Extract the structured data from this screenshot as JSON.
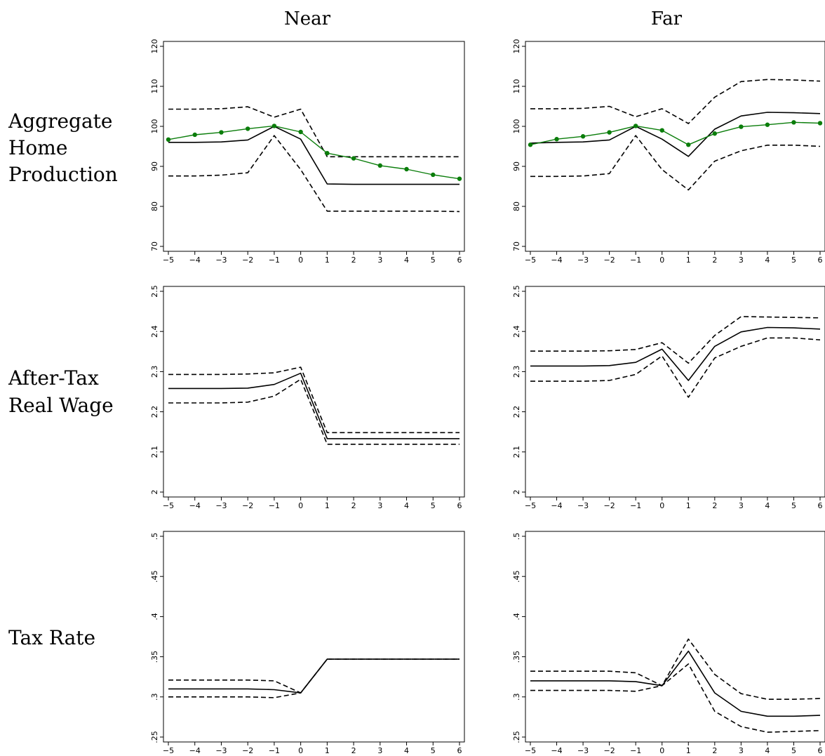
{
  "column_titles": [
    "Near",
    "Far"
  ],
  "row_labels": [
    [
      "Aggregate",
      "Home",
      "Production"
    ],
    [
      "After-Tax",
      "Real Wage"
    ],
    [
      "Tax Rate"
    ]
  ],
  "colors": {
    "estimate": "#000000",
    "bands": "#000000",
    "comparison": "#0a7d0a"
  },
  "chart_data": [
    {
      "type": "line",
      "row": 0,
      "col": 0,
      "x": [
        -5,
        -4,
        -3,
        -2,
        -1,
        0,
        1,
        2,
        3,
        4,
        5,
        6
      ],
      "ylim": [
        70,
        120
      ],
      "xticks": [
        "-5",
        "-4",
        "-3",
        "-2",
        "-1",
        "0",
        "1",
        "2",
        "3",
        "4",
        "5",
        "6"
      ],
      "yticks": [
        "70",
        "80",
        "90",
        "100",
        "110",
        "120"
      ],
      "series": [
        {
          "style": "solid",
          "values": [
            96,
            96,
            96.1,
            96.6,
            100,
            96.8,
            85.6,
            85.5,
            85.5,
            85.5,
            85.5,
            85.5
          ]
        },
        {
          "style": "dashed",
          "values": [
            104.3,
            104.3,
            104.4,
            104.9,
            102.3,
            104.3,
            92.4,
            92.4,
            92.4,
            92.4,
            92.4,
            92.4
          ]
        },
        {
          "style": "dashed",
          "values": [
            87.6,
            87.6,
            87.8,
            88.4,
            97.7,
            89.2,
            78.8,
            78.8,
            78.8,
            78.8,
            78.8,
            78.7
          ]
        },
        {
          "style": "marker",
          "values": [
            96.7,
            97.9,
            98.5,
            99.4,
            100.1,
            98.6,
            93.3,
            92,
            90.2,
            89.3,
            87.9,
            86.9
          ]
        }
      ]
    },
    {
      "type": "line",
      "row": 0,
      "col": 1,
      "x": [
        -5,
        -4,
        -3,
        -2,
        -1,
        0,
        1,
        2,
        3,
        4,
        5,
        6
      ],
      "ylim": [
        70,
        120
      ],
      "xticks": [
        "-5",
        "-4",
        "-3",
        "-2",
        "-1",
        "0",
        "1",
        "2",
        "3",
        "4",
        "5",
        "6"
      ],
      "yticks": [
        "70",
        "80",
        "90",
        "100",
        "110",
        "120"
      ],
      "series": [
        {
          "style": "solid",
          "values": [
            95.8,
            96,
            96.1,
            96.6,
            100,
            96.8,
            92.5,
            99.3,
            102.6,
            103.5,
            103.4,
            103.2
          ]
        },
        {
          "style": "dashed",
          "values": [
            104.4,
            104.4,
            104.5,
            105,
            102.4,
            104.4,
            100.7,
            107.3,
            111.2,
            111.7,
            111.6,
            111.3
          ]
        },
        {
          "style": "dashed",
          "values": [
            87.5,
            87.5,
            87.6,
            88.2,
            97.7,
            89.2,
            84.1,
            91.3,
            93.9,
            95.3,
            95.3,
            95
          ]
        },
        {
          "style": "marker",
          "values": [
            95.4,
            96.8,
            97.5,
            98.5,
            100.1,
            99,
            95.4,
            98.2,
            99.9,
            100.4,
            101,
            100.8
          ]
        }
      ]
    },
    {
      "type": "line",
      "row": 1,
      "col": 0,
      "x": [
        -5,
        -4,
        -3,
        -2,
        -1,
        0,
        1,
        2,
        3,
        4,
        5,
        6
      ],
      "ylim": [
        2,
        2.5
      ],
      "xticks": [
        "-5",
        "-4",
        "-3",
        "-2",
        "-1",
        "0",
        "1",
        "2",
        "3",
        "4",
        "5",
        "6"
      ],
      "yticks": [
        "2",
        "2.1",
        "2.2",
        "2.3",
        "2.4",
        "2.5"
      ],
      "series": [
        {
          "style": "solid",
          "values": [
            2.258,
            2.258,
            2.258,
            2.259,
            2.268,
            2.296,
            2.133,
            2.133,
            2.133,
            2.133,
            2.133,
            2.133
          ]
        },
        {
          "style": "dashed",
          "values": [
            2.293,
            2.293,
            2.293,
            2.294,
            2.297,
            2.311,
            2.148,
            2.148,
            2.148,
            2.148,
            2.148,
            2.148
          ]
        },
        {
          "style": "dashed",
          "values": [
            2.222,
            2.222,
            2.222,
            2.224,
            2.239,
            2.281,
            2.119,
            2.119,
            2.119,
            2.119,
            2.119,
            2.119
          ]
        }
      ]
    },
    {
      "type": "line",
      "row": 1,
      "col": 1,
      "x": [
        -5,
        -4,
        -3,
        -2,
        -1,
        0,
        1,
        2,
        3,
        4,
        5,
        6
      ],
      "ylim": [
        2,
        2.5
      ],
      "xticks": [
        "-5",
        "-4",
        "-3",
        "-2",
        "-1",
        "0",
        "1",
        "2",
        "3",
        "4",
        "5",
        "6"
      ],
      "yticks": [
        "2",
        "2.1",
        "2.2",
        "2.3",
        "2.4",
        "2.5"
      ],
      "series": [
        {
          "style": "solid",
          "values": [
            2.314,
            2.314,
            2.314,
            2.315,
            2.323,
            2.356,
            2.278,
            2.363,
            2.399,
            2.41,
            2.409,
            2.406
          ]
        },
        {
          "style": "dashed",
          "values": [
            2.351,
            2.351,
            2.351,
            2.352,
            2.355,
            2.372,
            2.321,
            2.39,
            2.437,
            2.436,
            2.435,
            2.434
          ]
        },
        {
          "style": "dashed",
          "values": [
            2.276,
            2.276,
            2.276,
            2.278,
            2.293,
            2.339,
            2.236,
            2.334,
            2.363,
            2.384,
            2.384,
            2.379
          ]
        }
      ]
    },
    {
      "type": "line",
      "row": 2,
      "col": 0,
      "x": [
        -5,
        -4,
        -3,
        -2,
        -1,
        0,
        1,
        2,
        3,
        4,
        5,
        6
      ],
      "ylim": [
        0.25,
        0.5
      ],
      "xticks": [
        "-5",
        "-4",
        "-3",
        "-2",
        "-1",
        "0",
        "1",
        "2",
        "3",
        "4",
        "5",
        "6"
      ],
      "yticks": [
        ".25",
        ".3",
        ".35",
        ".4",
        ".45",
        ".5"
      ],
      "series": [
        {
          "style": "solid",
          "values": [
            0.31,
            0.31,
            0.31,
            0.31,
            0.309,
            0.305,
            0.347,
            0.347,
            0.347,
            0.347,
            0.347,
            0.347
          ]
        },
        {
          "style": "dashed",
          "values": [
            0.321,
            0.321,
            0.321,
            0.321,
            0.32,
            0.305,
            0.347,
            0.347,
            0.347,
            0.347,
            0.347,
            0.347
          ]
        },
        {
          "style": "dashed",
          "values": [
            0.3,
            0.3,
            0.3,
            0.3,
            0.299,
            0.305,
            0.347,
            0.347,
            0.347,
            0.347,
            0.347,
            0.347
          ]
        }
      ]
    },
    {
      "type": "line",
      "row": 2,
      "col": 1,
      "x": [
        -5,
        -4,
        -3,
        -2,
        -1,
        0,
        1,
        2,
        3,
        4,
        5,
        6
      ],
      "ylim": [
        0.25,
        0.5
      ],
      "xticks": [
        "-5",
        "-4",
        "-3",
        "-2",
        "-1",
        "0",
        "1",
        "2",
        "3",
        "4",
        "5",
        "6"
      ],
      "yticks": [
        ".25",
        ".3",
        ".35",
        ".4",
        ".45",
        ".5"
      ],
      "series": [
        {
          "style": "solid",
          "values": [
            0.32,
            0.32,
            0.32,
            0.32,
            0.319,
            0.314,
            0.357,
            0.305,
            0.282,
            0.276,
            0.276,
            0.277
          ]
        },
        {
          "style": "dashed",
          "values": [
            0.332,
            0.332,
            0.332,
            0.332,
            0.33,
            0.314,
            0.372,
            0.328,
            0.304,
            0.297,
            0.297,
            0.298
          ]
        },
        {
          "style": "dashed",
          "values": [
            0.308,
            0.308,
            0.308,
            0.308,
            0.307,
            0.314,
            0.341,
            0.282,
            0.263,
            0.256,
            0.257,
            0.258
          ]
        }
      ]
    }
  ]
}
